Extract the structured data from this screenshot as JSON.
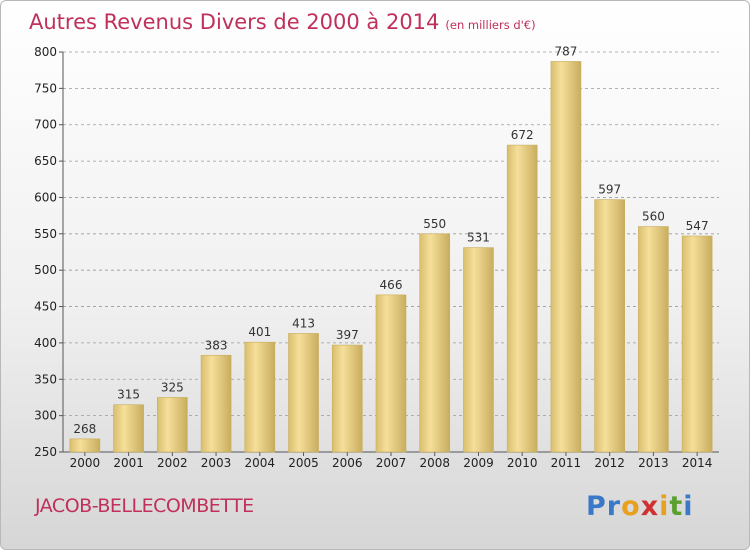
{
  "title": "Autres Revenus Divers de 2000 à 2014",
  "unit": "(en milliers d'€)",
  "commune": "JACOB-BELLECOMBETTE",
  "logo": {
    "letters": [
      "P",
      "r",
      "o",
      "x",
      "i",
      "t",
      "i"
    ],
    "colors": [
      "#3a78c8",
      "#3a78c8",
      "#e8a020",
      "#d03030",
      "#e8a020",
      "#5aa030",
      "#3a78c8"
    ]
  },
  "colors": {
    "bar_light": "#f6df9a",
    "bar_dark": "#c8ad5e",
    "title": "#c0305a"
  },
  "chart_data": {
    "type": "bar",
    "title": "Autres Revenus Divers de 2000 à 2014",
    "categories": [
      "2000",
      "2001",
      "2002",
      "2003",
      "2004",
      "2005",
      "2006",
      "2007",
      "2008",
      "2009",
      "2010",
      "2011",
      "2012",
      "2013",
      "2014"
    ],
    "values": [
      268,
      315,
      325,
      383,
      401,
      413,
      397,
      466,
      550,
      531,
      672,
      787,
      597,
      560,
      547
    ],
    "ylim": [
      250,
      800
    ],
    "yticks": [
      250,
      300,
      350,
      400,
      450,
      500,
      550,
      600,
      650,
      700,
      750,
      800
    ],
    "grid": true,
    "data_labels": true
  }
}
